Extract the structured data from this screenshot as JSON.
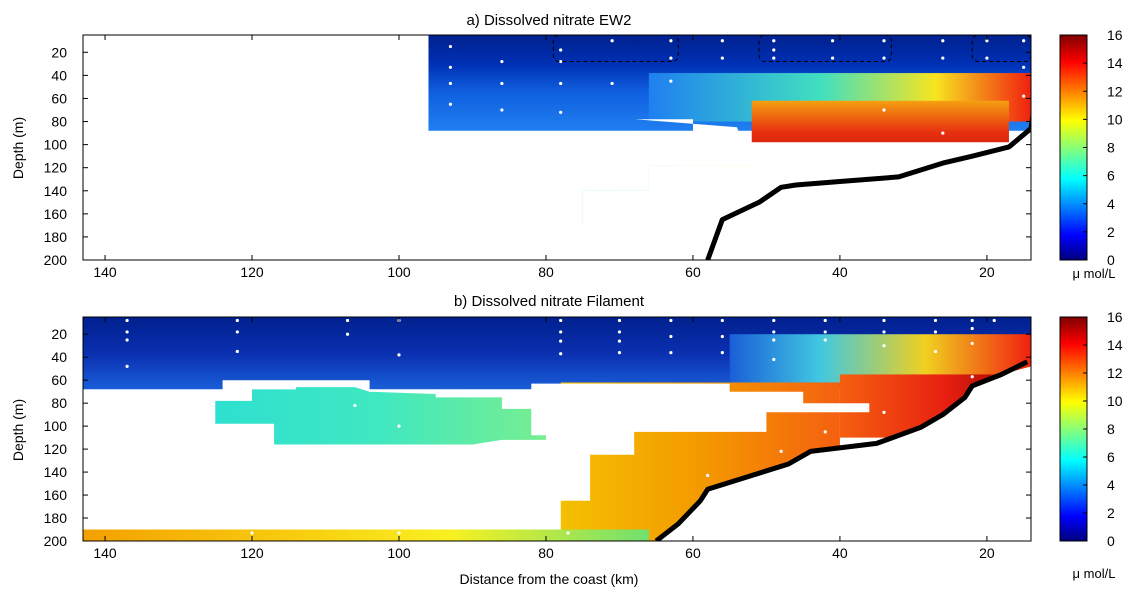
{
  "chart_data": [
    {
      "type": "heatmap",
      "title": "a) Dissolved nitrate EW2",
      "ylabel": "Depth (m)",
      "xlabel": "",
      "xlim": [
        143,
        14
      ],
      "ylim": [
        200,
        5
      ],
      "x_ticks": [
        "140",
        "120",
        "100",
        "80",
        "60",
        "40",
        "20"
      ],
      "y_ticks": [
        "20",
        "40",
        "60",
        "80",
        "100",
        "120",
        "140",
        "160",
        "180",
        "200"
      ],
      "colorbar": {
        "min": 0,
        "max": 16,
        "ticks": [
          "0",
          "2",
          "4",
          "6",
          "8",
          "10",
          "12",
          "14",
          "16"
        ],
        "unit": "μ mol/L"
      },
      "fields": [
        {
          "x": [
            96,
            14
          ],
          "y": [
            5,
            88
          ],
          "stops": [
            [
              0,
              "#00208e"
            ],
            [
              0.3,
              "#0030b4"
            ],
            [
              0.6,
              "#1060e0"
            ],
            [
              1,
              "#1f7ff0"
            ]
          ],
          "dir": "v"
        },
        {
          "x": [
            66,
            14
          ],
          "y": [
            38,
            80
          ],
          "stops": [
            [
              0,
              "#1f7ff0"
            ],
            [
              0.45,
              "#40e0c0"
            ],
            [
              0.75,
              "#f8e420"
            ],
            [
              1,
              "#f02010"
            ]
          ],
          "dir": "h"
        },
        {
          "x": [
            52,
            17
          ],
          "y": [
            62,
            140
          ],
          "stops": [
            [
              0,
              "#f4a010"
            ],
            [
              0.35,
              "#e83010"
            ],
            [
              1,
              "#a00000"
            ]
          ],
          "dir": "v"
        },
        {
          "x": [
            66,
            52
          ],
          "y": [
            118,
            155
          ],
          "stops": [
            [
              0,
              "#a0e060"
            ],
            [
              1,
              "#f0e020"
            ]
          ],
          "dir": "h"
        },
        {
          "x": [
            75,
            52
          ],
          "y": [
            140,
            170
          ],
          "stops": [
            [
              0,
              "#30e0c0"
            ],
            [
              1,
              "#80f080"
            ]
          ],
          "dir": "h"
        },
        {
          "x": [
            96,
            60
          ],
          "y": [
            187,
            200
          ],
          "stops": [
            [
              0,
              "#f0f020"
            ],
            [
              0.25,
              "#20e8d0"
            ],
            [
              0.55,
              "#f8c000"
            ],
            [
              1,
              "#f8f020"
            ]
          ],
          "dir": "h"
        }
      ],
      "masks": [
        [
          [
            68,
            78
          ],
          [
            54,
            85
          ],
          [
            52,
            118
          ],
          [
            66,
            118
          ],
          [
            66,
            140
          ],
          [
            75,
            140
          ],
          [
            75,
            187
          ],
          [
            96,
            187
          ],
          [
            96,
            200
          ],
          [
            14,
            200
          ],
          [
            14,
            98
          ],
          [
            60,
            98
          ],
          [
            60,
            78
          ]
        ],
        [
          [
            143,
            5
          ],
          [
            96,
            5
          ],
          [
            96,
            200
          ],
          [
            143,
            200
          ]
        ]
      ],
      "bottom": [
        [
          58,
          200
        ],
        [
          56,
          165
        ],
        [
          51,
          150
        ],
        [
          48,
          137
        ],
        [
          46,
          135
        ],
        [
          40,
          132
        ],
        [
          32,
          128
        ],
        [
          26,
          116
        ],
        [
          22,
          110
        ],
        [
          17,
          102
        ],
        [
          14,
          86
        ],
        [
          14,
          200
        ]
      ],
      "bottom_line": [
        [
          58,
          200
        ],
        [
          56,
          165
        ],
        [
          51,
          150
        ],
        [
          48,
          137
        ],
        [
          46,
          135
        ],
        [
          40,
          132
        ],
        [
          32,
          128
        ],
        [
          26,
          116
        ],
        [
          22,
          110
        ],
        [
          17,
          102
        ],
        [
          14,
          86
        ],
        [
          13.5,
          64
        ]
      ],
      "boxes": [
        [
          79,
          62,
          5,
          28
        ],
        [
          51,
          33,
          5,
          28
        ],
        [
          22,
          14,
          5,
          28
        ]
      ],
      "samples": [
        [
          93,
          15
        ],
        [
          93,
          33
        ],
        [
          93,
          47
        ],
        [
          93,
          65
        ],
        [
          86,
          28
        ],
        [
          86,
          47
        ],
        [
          86,
          70
        ],
        [
          78,
          18
        ],
        [
          78,
          28
        ],
        [
          78,
          47
        ],
        [
          78,
          72
        ],
        [
          71,
          10
        ],
        [
          71,
          47
        ],
        [
          63,
          10
        ],
        [
          63,
          25
        ],
        [
          63,
          45
        ],
        [
          56,
          10
        ],
        [
          56,
          25
        ],
        [
          49,
          10
        ],
        [
          49,
          18
        ],
        [
          49,
          25
        ],
        [
          41,
          10
        ],
        [
          41,
          25
        ],
        [
          41,
          122
        ],
        [
          34,
          10
        ],
        [
          34,
          25
        ],
        [
          34,
          70
        ],
        [
          34,
          105
        ],
        [
          26,
          10
        ],
        [
          26,
          25
        ],
        [
          26,
          90
        ],
        [
          20,
          10
        ],
        [
          20,
          25
        ],
        [
          15,
          10
        ],
        [
          15,
          33
        ],
        [
          15,
          58
        ],
        [
          93,
          195
        ],
        [
          86,
          195
        ],
        [
          78,
          195
        ],
        [
          71,
          195
        ],
        [
          63,
          195
        ]
      ]
    },
    {
      "type": "heatmap",
      "title": "b) Dissolved nitrate Filament",
      "ylabel": "Depth (m)",
      "xlabel": "Distance from the coast (km)",
      "xlim": [
        143,
        14
      ],
      "ylim": [
        200,
        5
      ],
      "x_ticks": [
        "140",
        "120",
        "100",
        "80",
        "60",
        "40",
        "20"
      ],
      "y_ticks": [
        "20",
        "40",
        "60",
        "80",
        "100",
        "120",
        "140",
        "160",
        "180",
        "200"
      ],
      "colorbar": {
        "min": 0,
        "max": 16,
        "ticks": [
          "0",
          "2",
          "4",
          "6",
          "8",
          "10",
          "12",
          "14",
          "16"
        ],
        "unit": "μ mol/L"
      },
      "fields": [
        {
          "x": [
            143,
            14
          ],
          "y": [
            5,
            68
          ],
          "stops": [
            [
              0,
              "#00208e"
            ],
            [
              0.5,
              "#0a2fb0"
            ],
            [
              1,
              "#1a5ed8"
            ]
          ],
          "dir": "v"
        },
        {
          "x": [
            55,
            14
          ],
          "y": [
            20,
            62
          ],
          "stops": [
            [
              0,
              "#1a5ed8"
            ],
            [
              0.3,
              "#40c8e0"
            ],
            [
              0.65,
              "#f0d020"
            ],
            [
              1,
              "#f02010"
            ]
          ],
          "dir": "h"
        },
        {
          "x": [
            40,
            14
          ],
          "y": [
            55,
            110
          ],
          "stops": [
            [
              0,
              "#f46010"
            ],
            [
              0.55,
              "#e82010"
            ],
            [
              1,
              "#900000"
            ]
          ],
          "dir": "h"
        },
        {
          "x": [
            78,
            40
          ],
          "y": [
            62,
            200
          ],
          "stops": [
            [
              0,
              "#f4c000"
            ],
            [
              0.5,
              "#f49a00"
            ],
            [
              1,
              "#f46010"
            ]
          ],
          "dir": "h"
        },
        {
          "x": [
            125,
            82
          ],
          "y": [
            68,
            118
          ],
          "stops": [
            [
              0,
              "#30e4c8"
            ],
            [
              0.6,
              "#40e8c0"
            ],
            [
              1,
              "#70ee90"
            ]
          ],
          "dir": "h"
        },
        {
          "x": [
            143,
            66
          ],
          "y": [
            190,
            200
          ],
          "stops": [
            [
              0,
              "#f4a000"
            ],
            [
              0.4,
              "#f8d010"
            ],
            [
              0.65,
              "#f8f020"
            ],
            [
              1,
              "#70e070"
            ]
          ],
          "dir": "h"
        }
      ],
      "masks": [
        [
          [
            143,
            68
          ],
          [
            124,
            68
          ],
          [
            124,
            60
          ],
          [
            104,
            60
          ],
          [
            104,
            68
          ],
          [
            82,
            68
          ],
          [
            82,
            63
          ],
          [
            55,
            63
          ],
          [
            55,
            70
          ],
          [
            45,
            70
          ],
          [
            45,
            80
          ],
          [
            36,
            80
          ],
          [
            36,
            88
          ],
          [
            50,
            88
          ],
          [
            50,
            105
          ],
          [
            68,
            105
          ],
          [
            68,
            125
          ],
          [
            74,
            125
          ],
          [
            74,
            165
          ],
          [
            78,
            165
          ],
          [
            78,
            190
          ],
          [
            143,
            190
          ]
        ]
      ],
      "holes": [
        [
          [
            125,
            78
          ],
          [
            120,
            78
          ],
          [
            120,
            68
          ],
          [
            114,
            68
          ],
          [
            114,
            66
          ],
          [
            106,
            66
          ],
          [
            104,
            70
          ],
          [
            95,
            72
          ],
          [
            95,
            75
          ],
          [
            86,
            75
          ],
          [
            86,
            85
          ],
          [
            82,
            85
          ],
          [
            82,
            108
          ],
          [
            80,
            108
          ],
          [
            80,
            112
          ],
          [
            86,
            112
          ],
          [
            90,
            116
          ],
          [
            117,
            116
          ],
          [
            117,
            98
          ],
          [
            125,
            98
          ]
        ]
      ],
      "bottom": [
        [
          65,
          200
        ],
        [
          62,
          185
        ],
        [
          59,
          165
        ],
        [
          58,
          155
        ],
        [
          52,
          143
        ],
        [
          47,
          133
        ],
        [
          44,
          122
        ],
        [
          35,
          115
        ],
        [
          29,
          101
        ],
        [
          26,
          90
        ],
        [
          23,
          75
        ],
        [
          22,
          65
        ],
        [
          18,
          55
        ],
        [
          14,
          48
        ],
        [
          14,
          200
        ]
      ],
      "bottom_line": [
        [
          65,
          200
        ],
        [
          62,
          185
        ],
        [
          59,
          165
        ],
        [
          58,
          155
        ],
        [
          52,
          143
        ],
        [
          47,
          133
        ],
        [
          44,
          122
        ],
        [
          35,
          115
        ],
        [
          29,
          101
        ],
        [
          26,
          90
        ],
        [
          23,
          75
        ],
        [
          22,
          65
        ],
        [
          18,
          55
        ],
        [
          14.5,
          44
        ]
      ],
      "boxes": [],
      "samples": [
        [
          137,
          8
        ],
        [
          137,
          18
        ],
        [
          137,
          25
        ],
        [
          137,
          48
        ],
        [
          122,
          8
        ],
        [
          122,
          18
        ],
        [
          122,
          35
        ],
        [
          107,
          8
        ],
        [
          107,
          20
        ],
        [
          100,
          8
        ],
        [
          100,
          38
        ],
        [
          78,
          8
        ],
        [
          78,
          18
        ],
        [
          78,
          26
        ],
        [
          78,
          37
        ],
        [
          70,
          8
        ],
        [
          70,
          18
        ],
        [
          70,
          26
        ],
        [
          70,
          36
        ],
        [
          63,
          8
        ],
        [
          63,
          22
        ],
        [
          63,
          36
        ],
        [
          56,
          8
        ],
        [
          56,
          22
        ],
        [
          56,
          36
        ],
        [
          49,
          8
        ],
        [
          49,
          18
        ],
        [
          49,
          25
        ],
        [
          49,
          42
        ],
        [
          42,
          8
        ],
        [
          42,
          18
        ],
        [
          42,
          25
        ],
        [
          42,
          105
        ],
        [
          34,
          8
        ],
        [
          34,
          18
        ],
        [
          34,
          30
        ],
        [
          34,
          88
        ],
        [
          27,
          8
        ],
        [
          27,
          18
        ],
        [
          27,
          35
        ],
        [
          22,
          8
        ],
        [
          22,
          15
        ],
        [
          22,
          28
        ],
        [
          22,
          57
        ],
        [
          19,
          8
        ],
        [
          106,
          82
        ],
        [
          100,
          100
        ],
        [
          120,
          193
        ],
        [
          100,
          193
        ],
        [
          77,
          193
        ],
        [
          58,
          143
        ],
        [
          48,
          122
        ]
      ]
    }
  ]
}
